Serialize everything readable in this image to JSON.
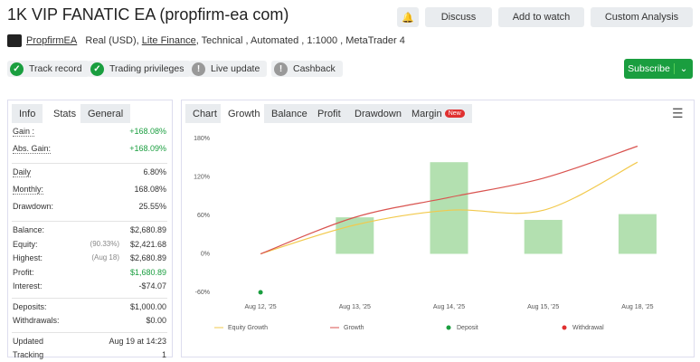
{
  "header": {
    "title": "1K VIP FANATIC EA (propfirm-ea com)",
    "buttons": [
      "Discuss",
      "Add to watch",
      "Custom Analysis"
    ]
  },
  "meta": {
    "author": "PropfirmEA",
    "account": "Real (USD),",
    "broker": "Lite Finance",
    "details": ", Technical , Automated , 1:1000 , MetaTrader 4"
  },
  "badges": [
    "Track record",
    "Trading privileges",
    "Live update",
    "Cashback"
  ],
  "subscribe": "Subscribe",
  "stats": {
    "tabs": [
      "Info",
      "Stats",
      "General"
    ],
    "groups": [
      [
        {
          "label": "Gain :",
          "value": "+168.08%",
          "color": "#1a9e3f"
        },
        {
          "label": "Abs. Gain:",
          "value": "+168.09%",
          "color": "#1a9e3f"
        }
      ],
      [
        {
          "label": "Daily",
          "value": "6.80%"
        },
        {
          "label": "Monthly:",
          "value": "168.08%"
        },
        {
          "label": "Drawdown:",
          "value": "25.55%"
        }
      ],
      [
        {
          "label": "Balance:",
          "value": "$2,680.89"
        },
        {
          "label": "Equity:",
          "note": "(90.33%)",
          "value": "$2,421.68"
        },
        {
          "label": "Highest:",
          "note": "(Aug 18)",
          "value": "$2,680.89"
        },
        {
          "label": "Profit:",
          "value": "$1,680.89",
          "color": "#1a9e3f"
        },
        {
          "label": "Interest:",
          "value": "-$74.07"
        }
      ],
      [
        {
          "label": "Deposits:",
          "value": "$1,000.00"
        },
        {
          "label": "Withdrawals:",
          "value": "$0.00"
        }
      ],
      [
        {
          "label": "Updated",
          "value": "Aug 19 at 14:23"
        },
        {
          "label": "Tracking",
          "value": "1"
        }
      ]
    ]
  },
  "chart_tabs": {
    "tabs": [
      "Chart",
      "Growth",
      "Balance",
      "Profit",
      "Drawdown",
      "Margin"
    ],
    "new_badge": "New"
  },
  "chart_data": {
    "type": "bar",
    "categories": [
      "Aug 12, '25",
      "Aug 13, '25",
      "Aug 14, '25",
      "Aug 15, '25",
      "Aug 18, '25"
    ],
    "bars": {
      "color": "#b3e0b0",
      "values": [
        null,
        57,
        143,
        53,
        62
      ]
    },
    "series": [
      {
        "name": "Equity Growth",
        "type": "line",
        "color": "#f2c94c",
        "values": [
          0,
          45,
          68,
          68,
          143
        ]
      },
      {
        "name": "Growth",
        "type": "line",
        "color": "#d9534f",
        "values": [
          0,
          57,
          88,
          118,
          168
        ]
      },
      {
        "name": "Deposit",
        "type": "scatter",
        "color": "#1a9e3f",
        "values": [
          -60,
          null,
          null,
          null,
          null
        ]
      },
      {
        "name": "Withdrawal",
        "type": "scatter",
        "color": "#e03030",
        "values": [
          null,
          null,
          null,
          null,
          null
        ]
      }
    ],
    "ylim": [
      -60,
      180
    ],
    "yticks": [
      {
        "value": -60,
        "label": "-60%"
      },
      {
        "value": 0,
        "label": "0%"
      },
      {
        "value": 60,
        "label": "60%"
      },
      {
        "value": 120,
        "label": "120%"
      },
      {
        "value": 180,
        "label": "180%"
      }
    ],
    "grid": false
  }
}
